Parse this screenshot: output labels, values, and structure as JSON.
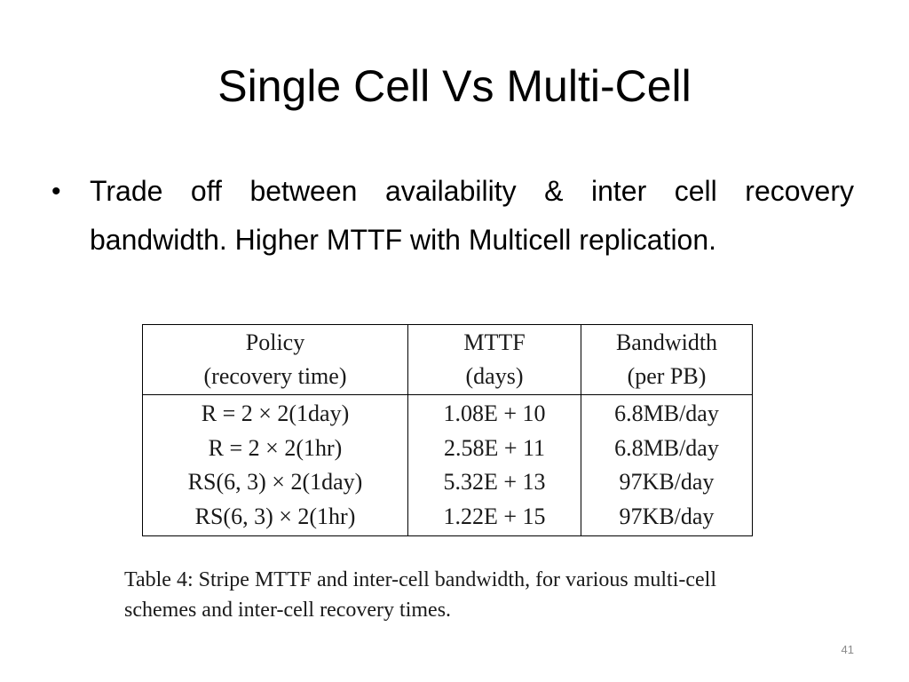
{
  "slide": {
    "title": "Single Cell Vs Multi-Cell",
    "bullet": "Trade off between availability & inter cell recovery bandwidth. Higher MTTF with Multicell replication.",
    "bullet_marker": "•",
    "page_number": "41"
  },
  "table": {
    "headers": [
      {
        "line1": "Policy",
        "line2": "(recovery time)"
      },
      {
        "line1": "MTTF",
        "line2": "(days)"
      },
      {
        "line1": "Bandwidth",
        "line2": "(per PB)"
      }
    ],
    "rows": [
      {
        "policy": "R = 2 × 2(1day)",
        "mttf": "1.08E + 10",
        "bandwidth": "6.8MB/day"
      },
      {
        "policy": "R = 2 × 2(1hr)",
        "mttf": "2.58E + 11",
        "bandwidth": "6.8MB/day"
      },
      {
        "policy": "RS(6, 3) × 2(1day)",
        "mttf": "5.32E + 13",
        "bandwidth": "97KB/day"
      },
      {
        "policy": "RS(6, 3) × 2(1hr)",
        "mttf": "1.22E + 15",
        "bandwidth": "97KB/day"
      }
    ],
    "caption": "Table 4: Stripe MTTF and inter-cell bandwidth, for various multi-cell schemes and inter-cell recovery times."
  }
}
